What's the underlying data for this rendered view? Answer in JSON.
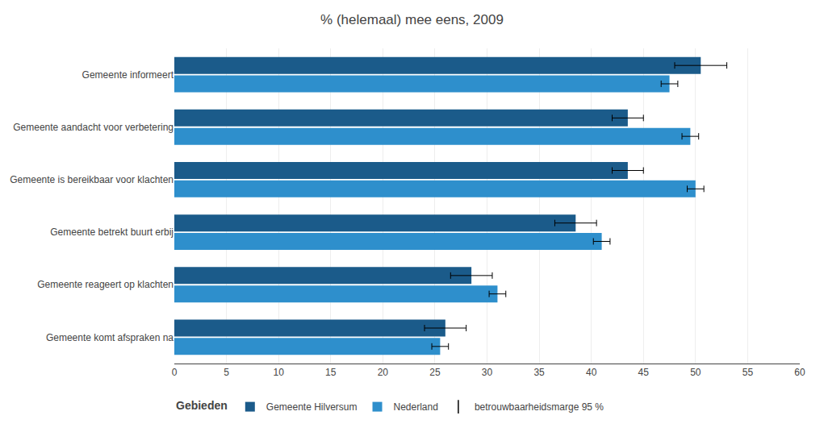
{
  "chart_data": {
    "type": "bar",
    "orientation": "horizontal",
    "title": "% (helemaal) mee eens, 2009",
    "categories": [
      "Gemeente informeert",
      "Gemeente aandacht voor verbetering",
      "Gemeente is bereikbaar voor klachten",
      "Gemeente betrekt buurt erbij",
      "Gemeente reageert op klachten",
      "Gemeente komt afspraken na"
    ],
    "series": [
      {
        "name": "Gemeente Hilversum",
        "color": "#1b5b8a",
        "values": [
          50.5,
          43.5,
          43.5,
          38.5,
          28.5,
          26.0
        ],
        "errors": [
          2.5,
          1.5,
          1.5,
          2.0,
          2.0,
          2.0
        ]
      },
      {
        "name": "Nederland",
        "color": "#2e8fcc",
        "values": [
          47.5,
          49.5,
          50.0,
          41.0,
          31.0,
          25.5
        ],
        "errors": [
          0.8,
          0.8,
          0.8,
          0.8,
          0.8,
          0.8
        ]
      }
    ],
    "error_label": "betrouwbaarheidsmarge 95 %",
    "legend_title": "Gebieden",
    "xlim": [
      0,
      60
    ],
    "xticks": [
      0,
      5,
      10,
      15,
      20,
      25,
      30,
      35,
      40,
      45,
      50,
      55,
      60
    ],
    "grid": true,
    "legend": "bottom"
  }
}
